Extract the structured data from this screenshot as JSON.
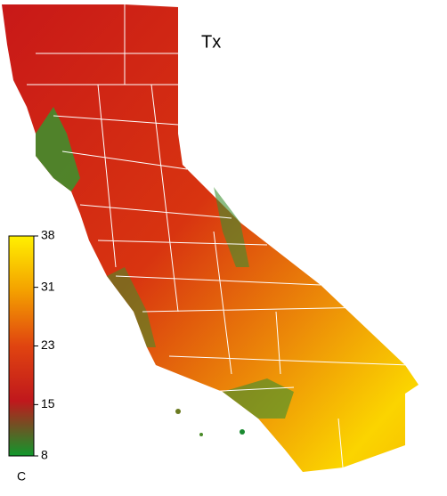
{
  "map": {
    "title": "Tx",
    "colorbar": {
      "lim": [
        8,
        38
      ],
      "ticks": [
        8,
        15,
        23,
        31,
        38
      ],
      "unit": "C",
      "colors": [
        "#10982c",
        "#c0181c",
        "#e04410",
        "#f4a000",
        "#fff000"
      ]
    }
  }
}
